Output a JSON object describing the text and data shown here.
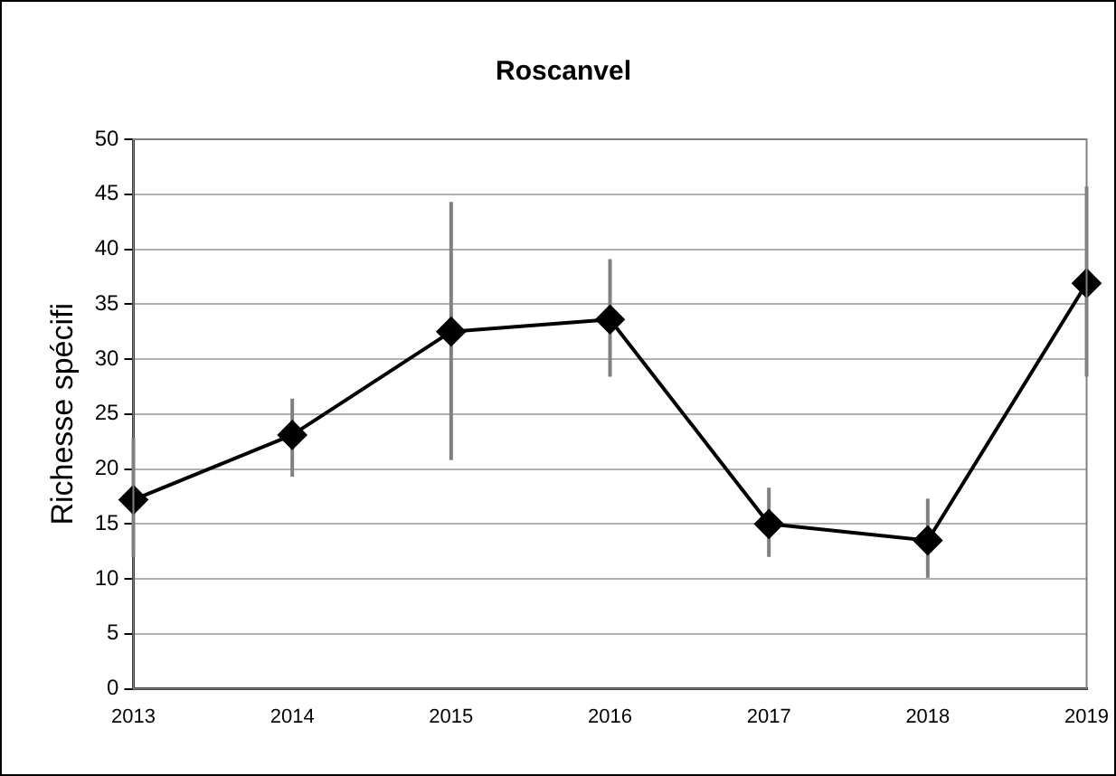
{
  "chart_data": {
    "type": "line",
    "title": "Roscanvel",
    "ylabel": "Richesse spécifi",
    "categories": [
      "2013",
      "2014",
      "2015",
      "2016",
      "2017",
      "2018",
      "2019"
    ],
    "series": [
      {
        "color": "#000000",
        "values": [
          17.2,
          23.1,
          32.5,
          33.6,
          15.0,
          13.5,
          36.9
        ],
        "errors": [
          [
            12.0,
            22.8
          ],
          [
            19.3,
            26.4
          ],
          [
            20.8,
            44.3
          ],
          [
            28.4,
            39.1
          ],
          [
            12.0,
            18.3
          ],
          [
            10.1,
            17.3
          ],
          [
            28.4,
            45.7
          ]
        ]
      }
    ],
    "ylim": [
      0,
      50
    ],
    "yticks": [
      0,
      5,
      10,
      15,
      20,
      25,
      30,
      35,
      40,
      45,
      50
    ],
    "grid": "y",
    "legend": false,
    "marker": "diamond",
    "line_style": "solid"
  }
}
